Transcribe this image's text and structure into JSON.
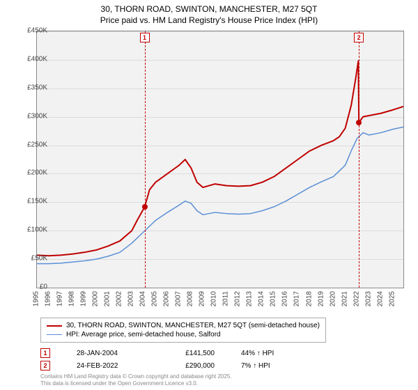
{
  "title": {
    "line1": "30, THORN ROAD, SWINTON, MANCHESTER, M27 5QT",
    "line2": "Price paid vs. HM Land Registry's House Price Index (HPI)"
  },
  "chart": {
    "type": "line",
    "background_color": "#f2f2f2",
    "grid_color": "#dcdcdc",
    "border_color": "#888888",
    "x_min": 1995,
    "x_max": 2025.9,
    "y_min": 0,
    "y_max": 450000,
    "y_ticks": [
      0,
      50000,
      100000,
      150000,
      200000,
      250000,
      300000,
      350000,
      400000,
      450000
    ],
    "y_tick_labels": [
      "£0",
      "£50K",
      "£100K",
      "£150K",
      "£200K",
      "£250K",
      "£300K",
      "£350K",
      "£400K",
      "£450K"
    ],
    "x_ticks": [
      1995,
      1996,
      1997,
      1998,
      1999,
      2000,
      2001,
      2002,
      2003,
      2004,
      2005,
      2006,
      2007,
      2008,
      2009,
      2010,
      2011,
      2012,
      2013,
      2014,
      2015,
      2016,
      2017,
      2018,
      2019,
      2020,
      2021,
      2022,
      2023,
      2024,
      2025
    ],
    "series": [
      {
        "name": "30, THORN ROAD, SWINTON, MANCHESTER, M27 5QT (semi-detached house)",
        "color": "#c00000",
        "line_width": 2,
        "points": [
          [
            1995.0,
            57000
          ],
          [
            1996.0,
            56000
          ],
          [
            1997.0,
            57000
          ],
          [
            1998.0,
            59000
          ],
          [
            1999.0,
            62000
          ],
          [
            2000.0,
            66000
          ],
          [
            2001.0,
            73000
          ],
          [
            2002.0,
            82000
          ],
          [
            2003.0,
            100000
          ],
          [
            2003.5,
            120000
          ],
          [
            2004.08,
            141500
          ],
          [
            2004.5,
            172000
          ],
          [
            2005.0,
            185000
          ],
          [
            2006.0,
            200000
          ],
          [
            2007.0,
            215000
          ],
          [
            2007.5,
            225000
          ],
          [
            2008.0,
            210000
          ],
          [
            2008.5,
            185000
          ],
          [
            2009.0,
            176000
          ],
          [
            2010.0,
            182000
          ],
          [
            2011.0,
            179000
          ],
          [
            2012.0,
            178000
          ],
          [
            2013.0,
            179000
          ],
          [
            2014.0,
            185000
          ],
          [
            2015.0,
            195000
          ],
          [
            2016.0,
            210000
          ],
          [
            2017.0,
            225000
          ],
          [
            2018.0,
            240000
          ],
          [
            2019.0,
            250000
          ],
          [
            2020.0,
            258000
          ],
          [
            2020.5,
            265000
          ],
          [
            2021.0,
            280000
          ],
          [
            2021.5,
            320000
          ],
          [
            2021.9,
            370000
          ],
          [
            2022.1,
            398000
          ],
          [
            2022.15,
            290000
          ],
          [
            2022.5,
            300000
          ],
          [
            2023.0,
            302000
          ],
          [
            2024.0,
            306000
          ],
          [
            2025.0,
            312000
          ],
          [
            2025.9,
            318000
          ]
        ]
      },
      {
        "name": "HPI: Average price, semi-detached house, Salford",
        "color": "#5b8fd6",
        "line_width": 1.5,
        "points": [
          [
            1995.0,
            42000
          ],
          [
            1996.0,
            42000
          ],
          [
            1997.0,
            43000
          ],
          [
            1998.0,
            45000
          ],
          [
            1999.0,
            47000
          ],
          [
            2000.0,
            50000
          ],
          [
            2001.0,
            55000
          ],
          [
            2002.0,
            62000
          ],
          [
            2003.0,
            78000
          ],
          [
            2004.0,
            98000
          ],
          [
            2005.0,
            118000
          ],
          [
            2006.0,
            132000
          ],
          [
            2007.0,
            145000
          ],
          [
            2007.5,
            152000
          ],
          [
            2008.0,
            148000
          ],
          [
            2008.5,
            135000
          ],
          [
            2009.0,
            128000
          ],
          [
            2010.0,
            132000
          ],
          [
            2011.0,
            130000
          ],
          [
            2012.0,
            129000
          ],
          [
            2013.0,
            130000
          ],
          [
            2014.0,
            135000
          ],
          [
            2015.0,
            142000
          ],
          [
            2016.0,
            152000
          ],
          [
            2017.0,
            164000
          ],
          [
            2018.0,
            176000
          ],
          [
            2019.0,
            186000
          ],
          [
            2020.0,
            195000
          ],
          [
            2021.0,
            215000
          ],
          [
            2021.5,
            240000
          ],
          [
            2022.0,
            262000
          ],
          [
            2022.5,
            272000
          ],
          [
            2023.0,
            268000
          ],
          [
            2024.0,
            272000
          ],
          [
            2025.0,
            278000
          ],
          [
            2025.9,
            282000
          ]
        ]
      }
    ],
    "markers": [
      {
        "idx": "1",
        "x": 2004.08,
        "y": 141500
      },
      {
        "idx": "2",
        "x": 2022.15,
        "y": 290000
      }
    ],
    "marker_color": "#c00000",
    "marker_line_style": "dashed"
  },
  "legend": {
    "items": [
      {
        "color": "#c00000",
        "width": 2,
        "label": "30, THORN ROAD, SWINTON, MANCHESTER, M27 5QT (semi-detached house)"
      },
      {
        "color": "#5b8fd6",
        "width": 1.5,
        "label": "HPI: Average price, semi-detached house, Salford"
      }
    ]
  },
  "sales": [
    {
      "idx": "1",
      "date": "28-JAN-2004",
      "price": "£141,500",
      "diff": "44% ↑ HPI"
    },
    {
      "idx": "2",
      "date": "24-FEB-2022",
      "price": "£290,000",
      "diff": "7% ↑ HPI"
    }
  ],
  "attribution": {
    "line1": "Contains HM Land Registry data © Crown copyright and database right 2025.",
    "line2": "This data is licensed under the Open Government Licence v3.0."
  },
  "label_fontsize": 10,
  "title_fontsize": 12
}
